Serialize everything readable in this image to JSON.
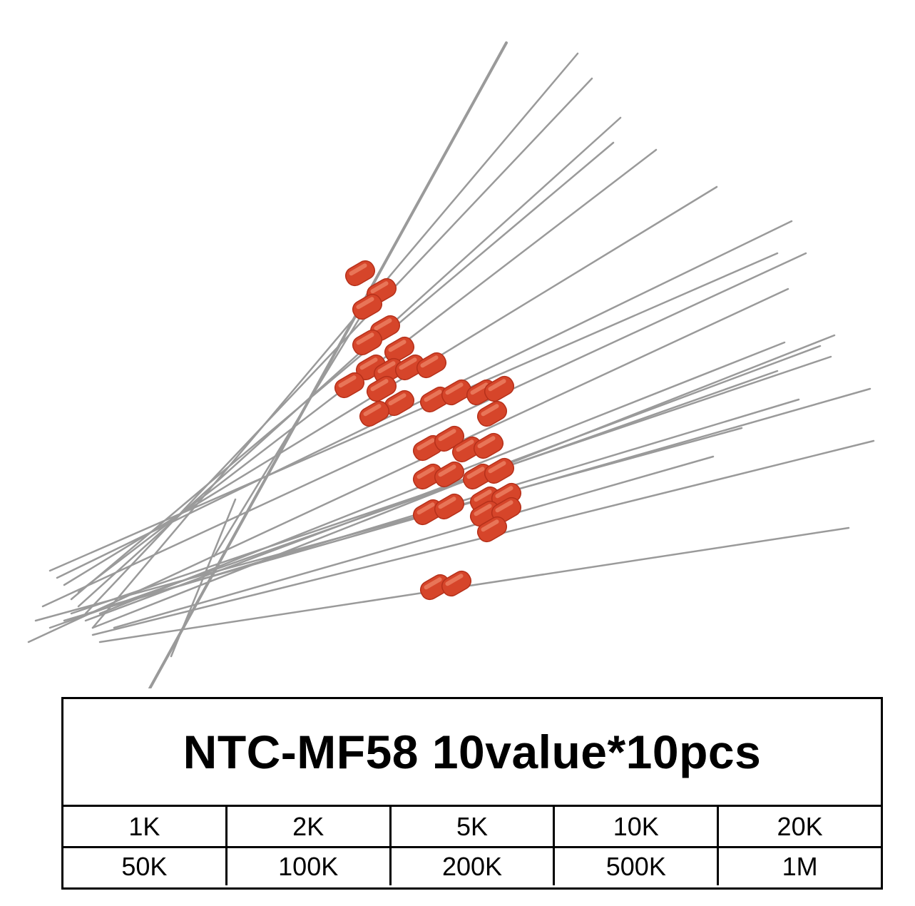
{
  "product": {
    "title": "NTC-MF58 10value*10pcs",
    "image_subject": "red glass NTC thermistors with wire leads"
  },
  "table": {
    "rows": [
      [
        "1K",
        "2K",
        "5K",
        "10K",
        "20K"
      ],
      [
        "50K",
        "100K",
        "200K",
        "500K",
        "1M"
      ]
    ]
  },
  "colors": {
    "body": "#d6452a",
    "lead": "#9a9a9a",
    "border": "#000000"
  }
}
